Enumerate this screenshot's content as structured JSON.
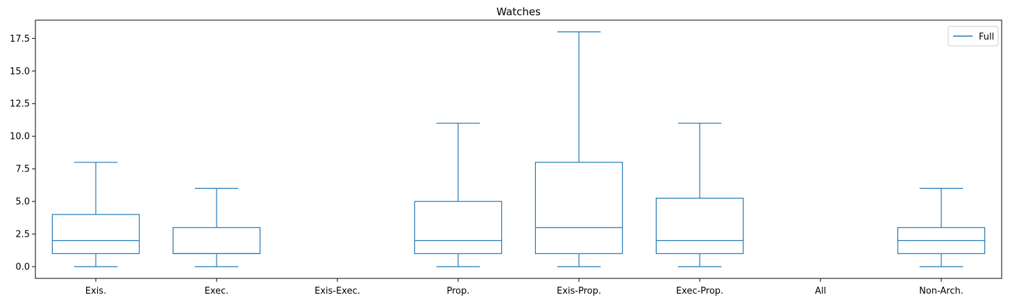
{
  "chart_data": {
    "type": "box",
    "title": "Watches",
    "xlabel": "",
    "ylabel": "",
    "categories": [
      "Exis.",
      "Exec.",
      "Exis-Exec.",
      "Prop.",
      "Exis-Prop.",
      "Exec-Prop.",
      "All",
      "Non-Arch."
    ],
    "series": [
      {
        "name": "Full",
        "color": "#1f77b4",
        "boxes": [
          {
            "category": "Exis.",
            "whisker_low": 0,
            "q1": 1,
            "median": 2,
            "q3": 4,
            "whisker_high": 8
          },
          {
            "category": "Exec.",
            "whisker_low": 0,
            "q1": 1,
            "median": 1,
            "q3": 3,
            "whisker_high": 6
          },
          {
            "category": "Exis-Exec.",
            "whisker_low": null,
            "q1": null,
            "median": null,
            "q3": null,
            "whisker_high": null
          },
          {
            "category": "Prop.",
            "whisker_low": 0,
            "q1": 1,
            "median": 2,
            "q3": 5,
            "whisker_high": 11
          },
          {
            "category": "Exis-Prop.",
            "whisker_low": 0,
            "q1": 1,
            "median": 3,
            "q3": 8,
            "whisker_high": 18
          },
          {
            "category": "Exec-Prop.",
            "whisker_low": 0,
            "q1": 1,
            "median": 2,
            "q3": 5.25,
            "whisker_high": 11
          },
          {
            "category": "All",
            "whisker_low": null,
            "q1": null,
            "median": null,
            "q3": null,
            "whisker_high": null
          },
          {
            "category": "Non-Arch.",
            "whisker_low": 0,
            "q1": 1,
            "median": 2,
            "q3": 3,
            "whisker_high": 6
          }
        ]
      }
    ],
    "yticks": [
      "0.0",
      "2.5",
      "5.0",
      "7.5",
      "10.0",
      "12.5",
      "15.0",
      "17.5"
    ],
    "ylim": [
      -0.9,
      18.9
    ],
    "grid": false,
    "legend_position": "top-right"
  }
}
